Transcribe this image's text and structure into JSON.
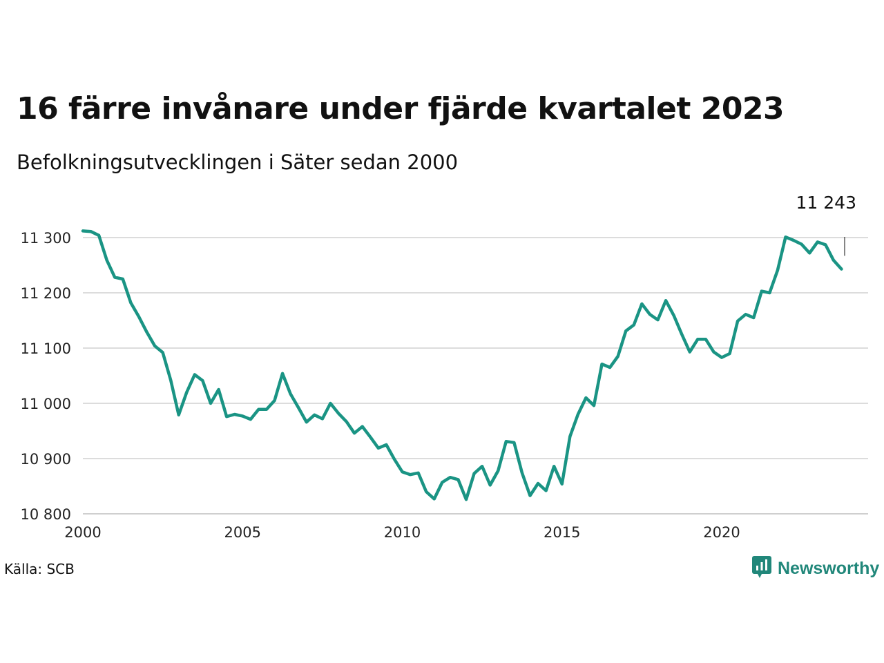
{
  "title": "16 färre invånare under fjärde kvartalet 2023",
  "subtitle": "Befolkningsutvecklingen i Säter sedan 2000",
  "source": "Källa: SCB",
  "brand": {
    "name": "Newsworthy",
    "color": "#21877a",
    "icon": "newsworthy-logo-icon"
  },
  "chart_data": {
    "type": "line",
    "ylim": [
      10800,
      11310
    ],
    "xlim": [
      2000,
      2024.75
    ],
    "y_ticks": [
      {
        "value": 11300,
        "label": "11 300"
      },
      {
        "value": 11200,
        "label": "11 200"
      },
      {
        "value": 11100,
        "label": "11 100"
      },
      {
        "value": 11000,
        "label": "11 000"
      },
      {
        "value": 10900,
        "label": "10 900"
      },
      {
        "value": 10800,
        "label": "10 800"
      }
    ],
    "x_ticks": [
      {
        "value": 2000,
        "label": "2000"
      },
      {
        "value": 2005,
        "label": "2005"
      },
      {
        "value": 2010,
        "label": "2010"
      },
      {
        "value": 2015,
        "label": "2015"
      },
      {
        "value": 2020,
        "label": "2020"
      }
    ],
    "grid": true,
    "line_color": "#1a9484",
    "annotation": {
      "x": 2023.75,
      "value": 11243,
      "label": "11 243"
    },
    "series": [
      {
        "x_start": 2000,
        "x_step": 0.25,
        "values": [
          11312,
          11311,
          11304,
          11259,
          11228,
          11225,
          11182,
          11157,
          11129,
          11104,
          11092,
          11042,
          10979,
          11020,
          11052,
          11041,
          11000,
          11025,
          10976,
          10980,
          10977,
          10971,
          10989,
          10989,
          11005,
          11054,
          11017,
          10992,
          10966,
          10979,
          10972,
          11000,
          10982,
          10967,
          10946,
          10958,
          10939,
          10919,
          10925,
          10899,
          10876,
          10871,
          10874,
          10840,
          10827,
          10857,
          10866,
          10862,
          10826,
          10873,
          10886,
          10852,
          10878,
          10931,
          10929,
          10874,
          10833,
          10855,
          10842,
          10886,
          10854,
          10940,
          10980,
          11010,
          10996,
          11071,
          11065,
          11085,
          11131,
          11142,
          11180,
          11161,
          11151,
          11186,
          11159,
          11125,
          11093,
          11116,
          11116,
          11093,
          11083,
          11090,
          11149,
          11161,
          11155,
          11203,
          11200,
          11241,
          11301,
          11295,
          11288,
          11272,
          11292,
          11287,
          11259,
          11243
        ]
      }
    ]
  }
}
